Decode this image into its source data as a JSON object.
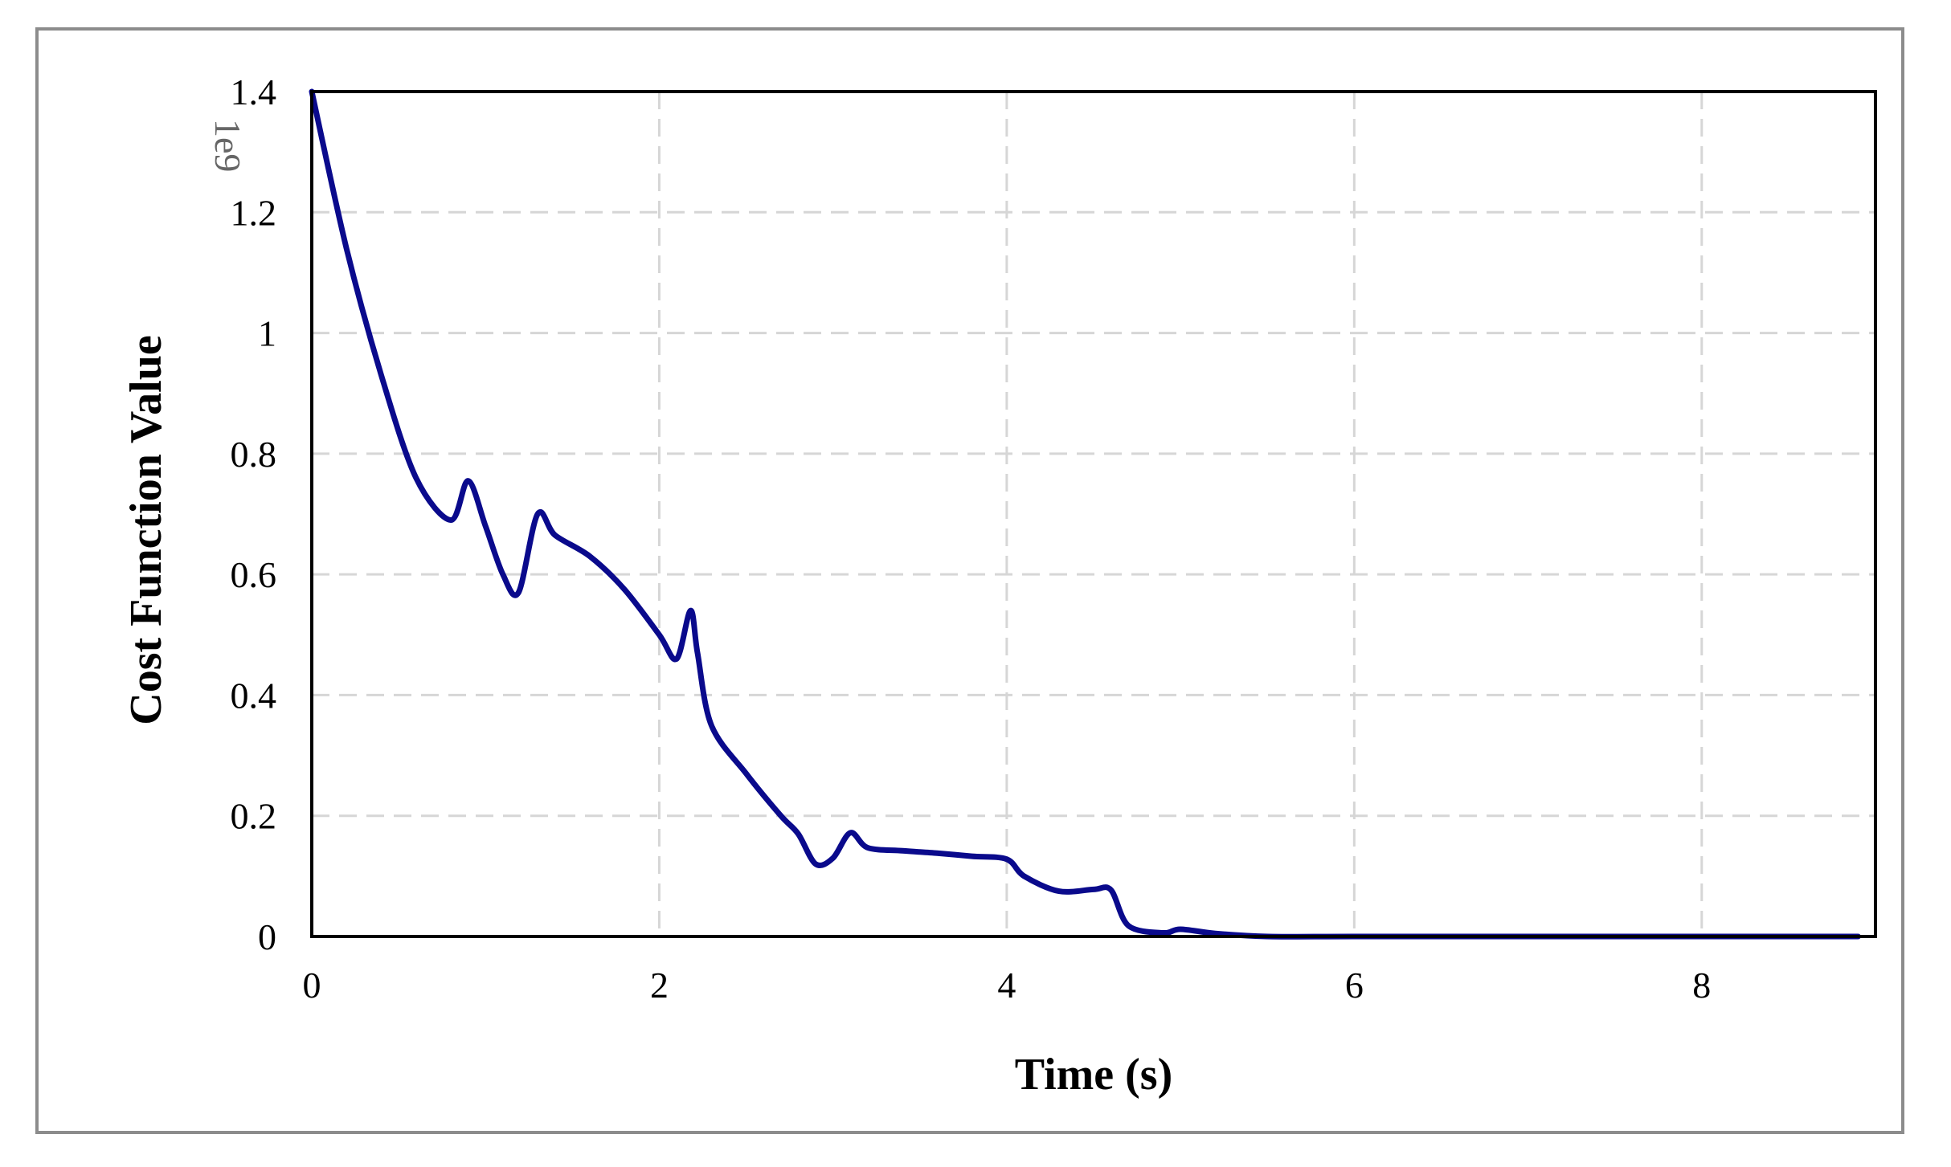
{
  "chart_data": {
    "type": "line",
    "xlabel": "Time (s)",
    "ylabel": "Cost Function Value",
    "y_offset_label": "1e9",
    "xlim": [
      0,
      9
    ],
    "ylim": [
      0,
      1.4
    ],
    "x_ticks": [
      0,
      2,
      4,
      6,
      8
    ],
    "y_ticks": [
      0,
      0.2,
      0.4,
      0.6,
      0.8,
      1,
      1.2,
      1.4
    ],
    "x_tick_labels": [
      "0",
      "2",
      "4",
      "6",
      "8"
    ],
    "y_tick_labels": [
      "0",
      "0.2",
      "0.4",
      "0.6",
      "0.8",
      "1",
      "1.2",
      "1.4"
    ],
    "grid": true,
    "line_color": "#0a0a8c",
    "series": [
      {
        "x": [
          0,
          0.2,
          0.4,
          0.6,
          0.8,
          0.9,
          1.0,
          1.1,
          1.19,
          1.3,
          1.4,
          1.6,
          1.8,
          2.0,
          2.1,
          2.18,
          2.22,
          2.3,
          2.5,
          2.7,
          2.8,
          2.9,
          3.0,
          3.1,
          3.2,
          3.4,
          3.6,
          3.8,
          4.0,
          4.1,
          4.3,
          4.5,
          4.6,
          4.7,
          4.9,
          5.0,
          5.2,
          5.5,
          6.0,
          7.0,
          8.0,
          8.9
        ],
        "y": [
          1.4,
          1.14,
          0.93,
          0.76,
          0.69,
          0.755,
          0.68,
          0.6,
          0.57,
          0.7,
          0.665,
          0.63,
          0.575,
          0.5,
          0.46,
          0.54,
          0.47,
          0.35,
          0.27,
          0.2,
          0.17,
          0.12,
          0.13,
          0.172,
          0.147,
          0.142,
          0.138,
          0.133,
          0.128,
          0.1,
          0.075,
          0.078,
          0.077,
          0.018,
          0.006,
          0.012,
          0.005,
          0.0,
          0.0,
          0.0,
          0.0,
          0.0
        ]
      }
    ]
  }
}
